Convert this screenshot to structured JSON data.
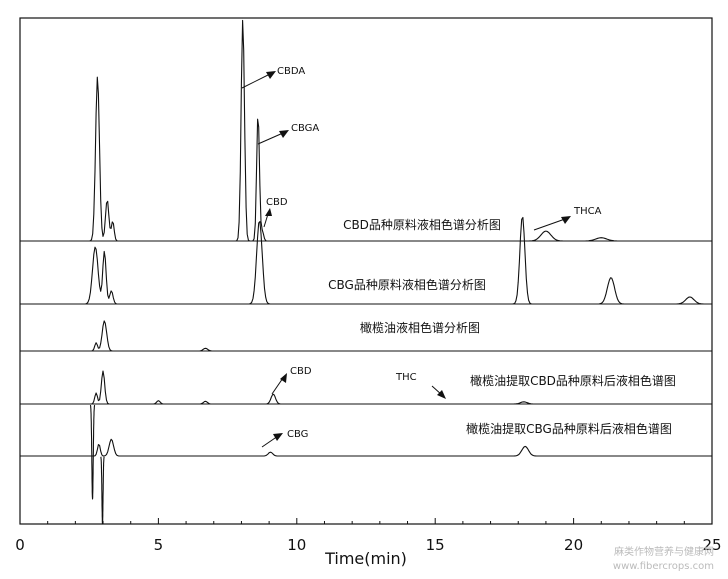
{
  "chart_data": {
    "type": "line",
    "xlabel": "Time(min)",
    "xlim": [
      0,
      25
    ],
    "xticks": [
      0,
      5,
      10,
      15,
      20,
      25
    ],
    "traces": [
      {
        "label": "CBD品种原料液相色谱分析图",
        "peaks": [
          {
            "t": 2.8,
            "h": 1.0,
            "w": 0.07
          },
          {
            "t": 3.15,
            "h": 0.25,
            "w": 0.06
          },
          {
            "t": 3.35,
            "h": 0.12,
            "w": 0.05
          },
          {
            "t": 8.05,
            "h": 1.35,
            "w": 0.06
          },
          {
            "t": 8.6,
            "h": 0.78,
            "w": 0.05
          },
          {
            "t": 8.75,
            "h": 0.06,
            "w": 0.05
          },
          {
            "t": 19.0,
            "h": 0.06,
            "w": 0.18
          },
          {
            "t": 21.0,
            "h": 0.02,
            "w": 0.2
          }
        ]
      },
      {
        "label": "CBG品种原料液相色谱分析图",
        "peaks": [
          {
            "t": 2.72,
            "h": 0.65,
            "w": 0.1
          },
          {
            "t": 3.05,
            "h": 0.6,
            "w": 0.06
          },
          {
            "t": 3.3,
            "h": 0.15,
            "w": 0.06
          },
          {
            "t": 8.65,
            "h": 0.95,
            "w": 0.1
          },
          {
            "t": 18.15,
            "h": 1.0,
            "w": 0.09
          },
          {
            "t": 21.35,
            "h": 0.3,
            "w": 0.13
          },
          {
            "t": 24.2,
            "h": 0.08,
            "w": 0.15
          }
        ]
      },
      {
        "label": "橄榄油液相色谱分析图",
        "peaks": [
          {
            "t": 2.75,
            "h": 0.15,
            "w": 0.05
          },
          {
            "t": 3.05,
            "h": 0.55,
            "w": 0.08
          },
          {
            "t": 6.7,
            "h": 0.05,
            "w": 0.08
          }
        ]
      },
      {
        "label": "橄榄油提取CBD品种原料后液相色谱图",
        "peaks": [
          {
            "t": 2.75,
            "h": 0.2,
            "w": 0.05
          },
          {
            "t": 3.0,
            "h": 0.6,
            "w": 0.06
          },
          {
            "t": 5.0,
            "h": 0.06,
            "w": 0.06
          },
          {
            "t": 6.7,
            "h": 0.05,
            "w": 0.07
          },
          {
            "t": 9.15,
            "h": 0.18,
            "w": 0.08
          },
          {
            "t": 18.2,
            "h": 0.04,
            "w": 0.12
          }
        ]
      },
      {
        "label": "橄榄油提取CBG品种原料后液相色谱图",
        "peaks": [
          {
            "t": 2.85,
            "h": 0.25,
            "w": 0.05
          },
          {
            "t": 3.3,
            "h": 0.35,
            "w": 0.08
          },
          {
            "t": 9.05,
            "h": 0.08,
            "w": 0.08
          },
          {
            "t": 18.25,
            "h": 0.2,
            "w": 0.12
          }
        ]
      }
    ],
    "annotations": [
      {
        "text": "CBDA",
        "trace": 0,
        "t": 8.05
      },
      {
        "text": "CBGA",
        "trace": 0,
        "t": 8.6
      },
      {
        "text": "CBD",
        "trace": 0,
        "t": 8.9
      },
      {
        "text": "THCA",
        "trace": 0,
        "t": 19.0
      },
      {
        "text": "CBD",
        "trace": 3,
        "t": 9.15
      },
      {
        "text": "THC",
        "trace": 3,
        "t": 15.0
      },
      {
        "text": "CBG",
        "trace": 4,
        "t": 9.05
      }
    ]
  },
  "watermark": {
    "line1": "麻类作物营养与健康网",
    "line2": "www.fibercrops.com"
  }
}
